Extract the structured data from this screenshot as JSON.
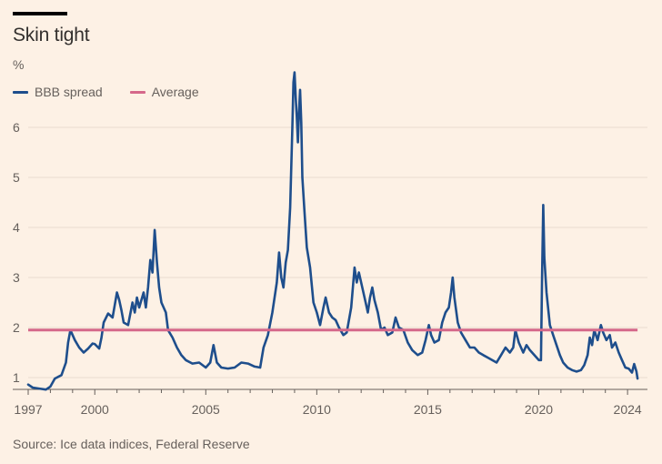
{
  "title": "Skin tight",
  "unit": "%",
  "legend": [
    {
      "label": "BBB spread",
      "color": "#1e4e8c"
    },
    {
      "label": "Average",
      "color": "#d5688a"
    }
  ],
  "source": "Source: Ice data indices, Federal Reserve",
  "chart_data": {
    "type": "line",
    "title": "Skin tight",
    "ylabel": "%",
    "xlim": [
      1997,
      2024.2
    ],
    "ylim": [
      0.7,
      6.7
    ],
    "y_ticks": [
      1,
      2,
      3,
      4,
      5,
      6
    ],
    "x_ticks": [
      1997,
      2000,
      2005,
      2010,
      2015,
      2020,
      2024
    ],
    "grid": "horizontal",
    "legend_position": "top-left",
    "average": 1.95,
    "series": [
      {
        "name": "BBB spread",
        "color": "#1e4e8c",
        "points": [
          [
            1997.0,
            0.86
          ],
          [
            1997.2,
            0.8
          ],
          [
            1997.5,
            0.78
          ],
          [
            1997.8,
            0.76
          ],
          [
            1998.0,
            0.82
          ],
          [
            1998.2,
            0.98
          ],
          [
            1998.5,
            1.05
          ],
          [
            1998.7,
            1.3
          ],
          [
            1998.8,
            1.7
          ],
          [
            1998.9,
            1.95
          ],
          [
            1999.1,
            1.75
          ],
          [
            1999.3,
            1.6
          ],
          [
            1999.5,
            1.5
          ],
          [
            1999.7,
            1.58
          ],
          [
            1999.9,
            1.68
          ],
          [
            2000.0,
            1.67
          ],
          [
            2000.2,
            1.58
          ],
          [
            2000.3,
            1.8
          ],
          [
            2000.4,
            2.1
          ],
          [
            2000.6,
            2.28
          ],
          [
            2000.8,
            2.2
          ],
          [
            2000.9,
            2.45
          ],
          [
            2001.0,
            2.7
          ],
          [
            2001.1,
            2.55
          ],
          [
            2001.2,
            2.35
          ],
          [
            2001.3,
            2.1
          ],
          [
            2001.5,
            2.05
          ],
          [
            2001.7,
            2.5
          ],
          [
            2001.8,
            2.3
          ],
          [
            2001.9,
            2.6
          ],
          [
            2002.0,
            2.4
          ],
          [
            2002.2,
            2.7
          ],
          [
            2002.3,
            2.4
          ],
          [
            2002.4,
            2.8
          ],
          [
            2002.5,
            3.35
          ],
          [
            2002.6,
            3.1
          ],
          [
            2002.7,
            3.95
          ],
          [
            2002.8,
            3.3
          ],
          [
            2002.9,
            2.8
          ],
          [
            2003.0,
            2.5
          ],
          [
            2003.2,
            2.3
          ],
          [
            2003.3,
            1.95
          ],
          [
            2003.5,
            1.8
          ],
          [
            2003.7,
            1.6
          ],
          [
            2003.9,
            1.45
          ],
          [
            2004.1,
            1.35
          ],
          [
            2004.4,
            1.28
          ],
          [
            2004.7,
            1.3
          ],
          [
            2005.0,
            1.2
          ],
          [
            2005.2,
            1.3
          ],
          [
            2005.35,
            1.65
          ],
          [
            2005.5,
            1.3
          ],
          [
            2005.7,
            1.2
          ],
          [
            2006.0,
            1.18
          ],
          [
            2006.3,
            1.2
          ],
          [
            2006.6,
            1.3
          ],
          [
            2006.9,
            1.28
          ],
          [
            2007.2,
            1.22
          ],
          [
            2007.45,
            1.2
          ],
          [
            2007.6,
            1.6
          ],
          [
            2007.8,
            1.85
          ],
          [
            2008.0,
            2.3
          ],
          [
            2008.2,
            2.9
          ],
          [
            2008.3,
            3.5
          ],
          [
            2008.4,
            3.0
          ],
          [
            2008.5,
            2.8
          ],
          [
            2008.6,
            3.3
          ],
          [
            2008.7,
            3.55
          ],
          [
            2008.8,
            4.4
          ],
          [
            2008.9,
            6.0
          ],
          [
            2008.95,
            6.9
          ],
          [
            2009.0,
            7.1
          ],
          [
            2009.05,
            6.6
          ],
          [
            2009.1,
            6.2
          ],
          [
            2009.15,
            5.7
          ],
          [
            2009.2,
            6.3
          ],
          [
            2009.25,
            6.75
          ],
          [
            2009.3,
            6.1
          ],
          [
            2009.35,
            5.0
          ],
          [
            2009.45,
            4.3
          ],
          [
            2009.55,
            3.6
          ],
          [
            2009.7,
            3.2
          ],
          [
            2009.85,
            2.5
          ],
          [
            2010.0,
            2.3
          ],
          [
            2010.15,
            2.05
          ],
          [
            2010.3,
            2.4
          ],
          [
            2010.4,
            2.6
          ],
          [
            2010.55,
            2.3
          ],
          [
            2010.7,
            2.2
          ],
          [
            2010.85,
            2.15
          ],
          [
            2011.0,
            2.0
          ],
          [
            2011.2,
            1.85
          ],
          [
            2011.35,
            1.9
          ],
          [
            2011.55,
            2.4
          ],
          [
            2011.7,
            3.2
          ],
          [
            2011.8,
            2.9
          ],
          [
            2011.9,
            3.1
          ],
          [
            2012.05,
            2.8
          ],
          [
            2012.2,
            2.5
          ],
          [
            2012.3,
            2.3
          ],
          [
            2012.4,
            2.6
          ],
          [
            2012.5,
            2.8
          ],
          [
            2012.6,
            2.55
          ],
          [
            2012.75,
            2.3
          ],
          [
            2012.9,
            1.95
          ],
          [
            2013.05,
            2.0
          ],
          [
            2013.2,
            1.85
          ],
          [
            2013.4,
            1.9
          ],
          [
            2013.55,
            2.2
          ],
          [
            2013.7,
            2.0
          ],
          [
            2013.9,
            1.95
          ],
          [
            2014.1,
            1.7
          ],
          [
            2014.3,
            1.55
          ],
          [
            2014.55,
            1.45
          ],
          [
            2014.75,
            1.5
          ],
          [
            2014.9,
            1.75
          ],
          [
            2015.05,
            2.05
          ],
          [
            2015.15,
            1.85
          ],
          [
            2015.3,
            1.7
          ],
          [
            2015.5,
            1.75
          ],
          [
            2015.65,
            2.1
          ],
          [
            2015.8,
            2.3
          ],
          [
            2015.95,
            2.4
          ],
          [
            2016.05,
            2.7
          ],
          [
            2016.12,
            3.0
          ],
          [
            2016.2,
            2.6
          ],
          [
            2016.35,
            2.1
          ],
          [
            2016.5,
            1.9
          ],
          [
            2016.7,
            1.75
          ],
          [
            2016.9,
            1.6
          ],
          [
            2017.1,
            1.6
          ],
          [
            2017.3,
            1.5
          ],
          [
            2017.5,
            1.45
          ],
          [
            2017.7,
            1.4
          ],
          [
            2017.9,
            1.35
          ],
          [
            2018.1,
            1.3
          ],
          [
            2018.3,
            1.45
          ],
          [
            2018.5,
            1.6
          ],
          [
            2018.7,
            1.5
          ],
          [
            2018.85,
            1.6
          ],
          [
            2018.95,
            1.95
          ],
          [
            2019.1,
            1.7
          ],
          [
            2019.3,
            1.5
          ],
          [
            2019.45,
            1.65
          ],
          [
            2019.6,
            1.55
          ],
          [
            2019.8,
            1.45
          ],
          [
            2020.0,
            1.35
          ],
          [
            2020.1,
            1.35
          ],
          [
            2020.15,
            3.0
          ],
          [
            2020.2,
            4.45
          ],
          [
            2020.25,
            3.4
          ],
          [
            2020.35,
            2.7
          ],
          [
            2020.5,
            2.05
          ],
          [
            2020.65,
            1.85
          ],
          [
            2020.8,
            1.65
          ],
          [
            2020.95,
            1.45
          ],
          [
            2021.1,
            1.3
          ],
          [
            2021.3,
            1.2
          ],
          [
            2021.5,
            1.15
          ],
          [
            2021.7,
            1.12
          ],
          [
            2021.9,
            1.15
          ],
          [
            2022.05,
            1.25
          ],
          [
            2022.2,
            1.45
          ],
          [
            2022.3,
            1.8
          ],
          [
            2022.4,
            1.65
          ],
          [
            2022.5,
            1.95
          ],
          [
            2022.65,
            1.75
          ],
          [
            2022.8,
            2.05
          ],
          [
            2022.9,
            1.9
          ],
          [
            2023.05,
            1.75
          ],
          [
            2023.2,
            1.85
          ],
          [
            2023.3,
            1.6
          ],
          [
            2023.45,
            1.7
          ],
          [
            2023.6,
            1.5
          ],
          [
            2023.75,
            1.35
          ],
          [
            2023.9,
            1.2
          ],
          [
            2024.05,
            1.18
          ],
          [
            2024.2,
            1.1
          ],
          [
            2024.3,
            1.27
          ],
          [
            2024.4,
            1.12
          ],
          [
            2024.45,
            0.98
          ]
        ]
      },
      {
        "name": "Average",
        "color": "#d5688a",
        "points": [
          [
            1997.0,
            1.95
          ],
          [
            2024.45,
            1.95
          ]
        ]
      }
    ]
  }
}
